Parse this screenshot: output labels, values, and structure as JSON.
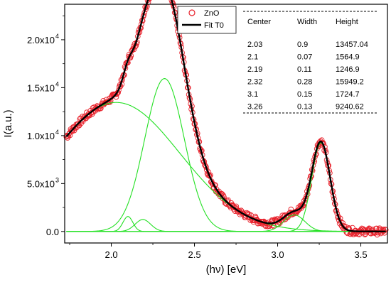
{
  "chart_data": {
    "type": "line",
    "xlabel": "(hν) [eV]",
    "ylabel": "I(a.u.)",
    "xlim": [
      1.72,
      3.66
    ],
    "ylim": [
      -1200,
      23700
    ],
    "x_ticks": [
      {
        "value": 2.0,
        "label": "2.0"
      },
      {
        "value": 2.5,
        "label": "2.5"
      },
      {
        "value": 3.0,
        "label": "3.0"
      },
      {
        "value": 3.5,
        "label": "3.5"
      }
    ],
    "y_ticks": [
      {
        "value": 0,
        "mantissa": "0.0",
        "exponent": ""
      },
      {
        "value": 5000,
        "mantissa": "5.0x10",
        "exponent": "3"
      },
      {
        "value": 10000,
        "mantissa": "1.0x10",
        "exponent": "4"
      },
      {
        "value": 15000,
        "mantissa": "1.5x10",
        "exponent": "4"
      },
      {
        "value": 20000,
        "mantissa": "2.0x10",
        "exponent": "4"
      }
    ],
    "legend": {
      "placement": "top",
      "entries": [
        {
          "label": "ZnO",
          "marker": "open-circle",
          "color": "#e8212b"
        },
        {
          "label": "Fit T0",
          "marker": "line",
          "color": "#000000"
        }
      ]
    },
    "gaussian_components": {
      "color": "#22e022",
      "columns": [
        "Center",
        "Width",
        "Height"
      ],
      "rows": [
        [
          "2.03",
          "0.9",
          "13457.04"
        ],
        [
          "2.1",
          "0.07",
          "1564.9"
        ],
        [
          "2.19",
          "0.11",
          "1246.9"
        ],
        [
          "2.32",
          "0.28",
          "15949.2"
        ],
        [
          "3.1",
          "0.15",
          "1724.7"
        ],
        [
          "3.26",
          "0.13",
          "9240.62"
        ]
      ]
    },
    "fit_color": "#000000",
    "data_color": "#e8212b",
    "data_x_range": [
      1.73,
      3.65
    ],
    "grid": false
  }
}
